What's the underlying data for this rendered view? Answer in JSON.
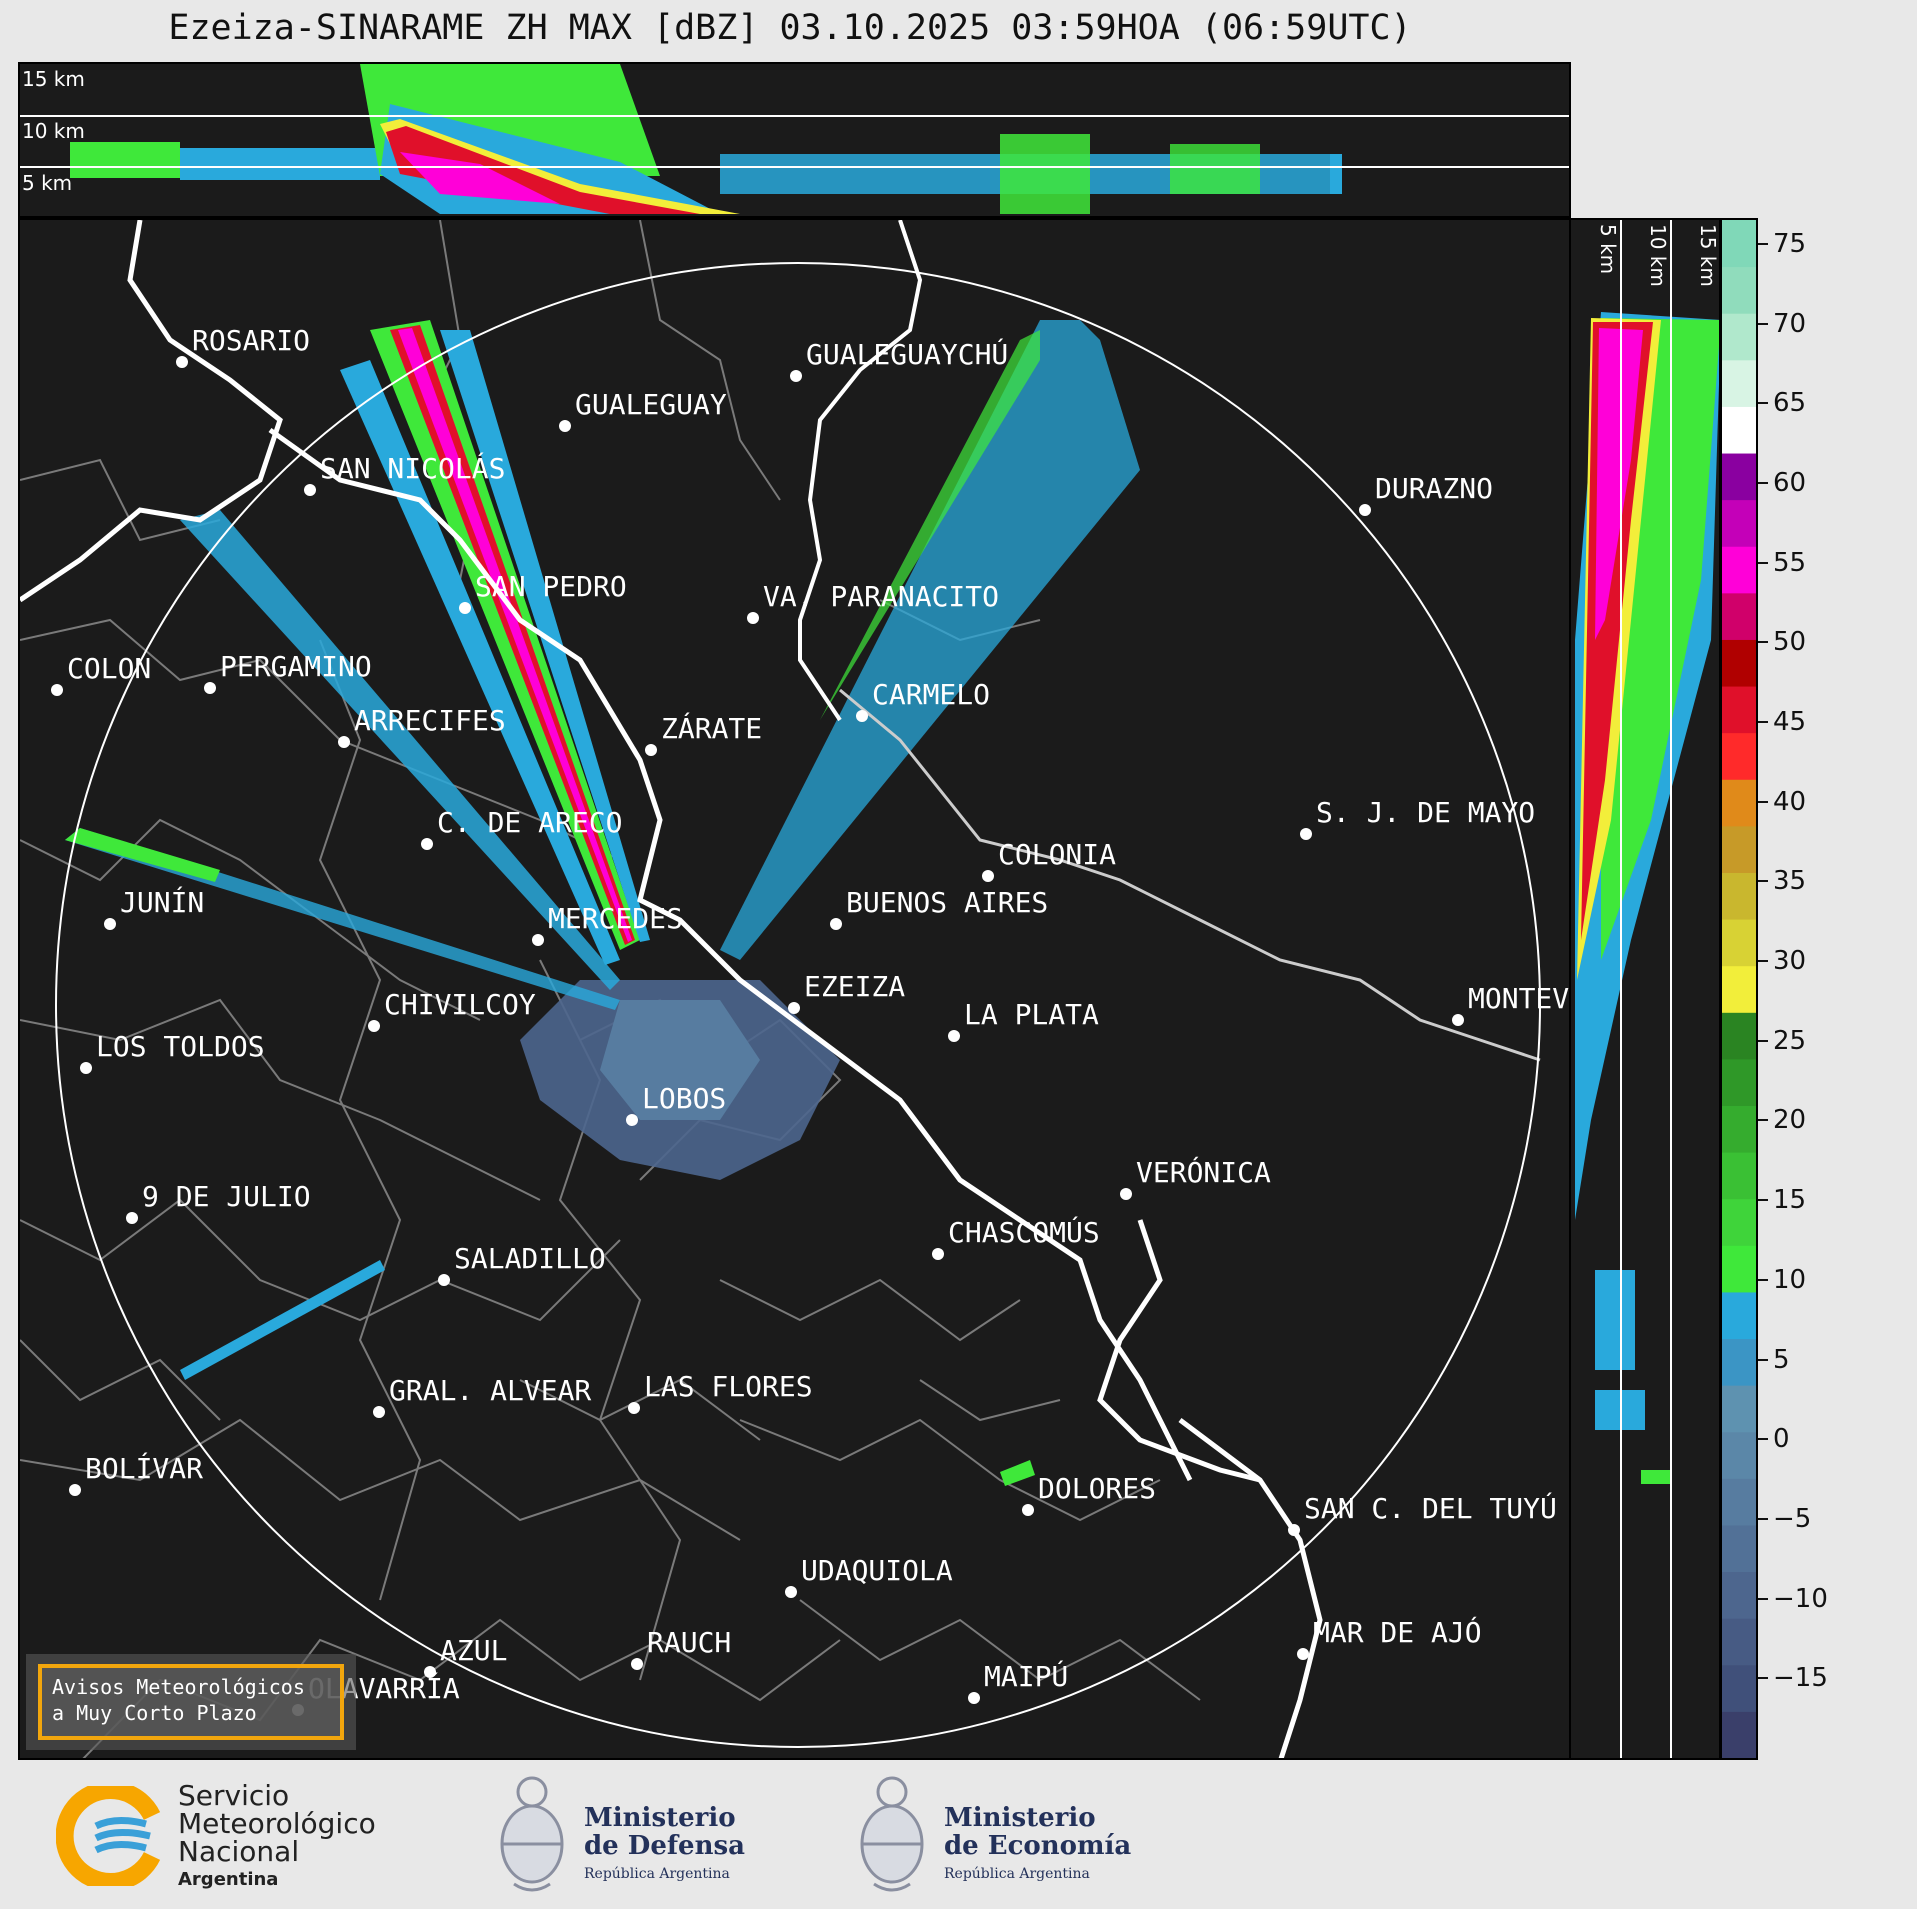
{
  "title": "Ezeiza-SINARAME ZH MAX [dBZ] 03.10.2025 03:59HOA (06:59UTC)",
  "top_panel": {
    "km_labels": [
      "15 km",
      "10 km",
      "5 km"
    ]
  },
  "side_panel": {
    "km_labels": [
      "5 km",
      "10 km",
      "15 km"
    ]
  },
  "colorbar": {
    "ticks": [
      "75",
      "70",
      "65",
      "60",
      "55",
      "50",
      "45",
      "40",
      "35",
      "30",
      "25",
      "20",
      "15",
      "10",
      "5",
      "0",
      "−5",
      "−10",
      "−15"
    ],
    "range": [
      -20,
      76.5
    ],
    "colors": [
      "#3a3f6a",
      "#40507a",
      "#475b84",
      "#4d668e",
      "#527197",
      "#577ca0",
      "#5b87a8",
      "#5e92b0",
      "#3b95c5",
      "#29a9dc",
      "#3fe83a",
      "#3fd43a",
      "#3ac034",
      "#35ac2e",
      "#2f9828",
      "#2a8422",
      "#f2ee3a",
      "#d8d234",
      "#c9b72e",
      "#c79a28",
      "#e08a1a",
      "#ff2a2a",
      "#e0102a",
      "#b00000",
      "#d0006a",
      "#ff00d8",
      "#c400b8",
      "#8a00a0",
      "#ffffff",
      "#d8f4e4",
      "#b0e8cc",
      "#90dcbc",
      "#80d8b8"
    ]
  },
  "cities": [
    {
      "name": "ROSARIO"
    },
    {
      "name": "GUALEGUAYCHÚ"
    },
    {
      "name": "GUALEGUAY"
    },
    {
      "name": "SAN NICOLÁS"
    },
    {
      "name": "DURAZNO"
    },
    {
      "name": "SAN PEDRO"
    },
    {
      "name": "VA. PARANACITO"
    },
    {
      "name": "COLON"
    },
    {
      "name": "PERGAMINO"
    },
    {
      "name": "CARMELO"
    },
    {
      "name": "ARRECIFES"
    },
    {
      "name": "ZÁRATE"
    },
    {
      "name": "C. DE ARECO"
    },
    {
      "name": "S. J. DE MAYO"
    },
    {
      "name": "COLONIA"
    },
    {
      "name": "JUNÍN"
    },
    {
      "name": "BUENOS AIRES"
    },
    {
      "name": "MERCEDES"
    },
    {
      "name": "EZEIZA"
    },
    {
      "name": "MONTEV"
    },
    {
      "name": "CHIVILCOY"
    },
    {
      "name": "LA PLATA"
    },
    {
      "name": "LOS TOLDOS"
    },
    {
      "name": "LOBOS"
    },
    {
      "name": "VERÓNICA"
    },
    {
      "name": "9 DE JULIO"
    },
    {
      "name": "CHASCOMÚS"
    },
    {
      "name": "SALADILLO"
    },
    {
      "name": "GRAL. ALVEAR"
    },
    {
      "name": "LAS FLORES"
    },
    {
      "name": "BOLÍVAR"
    },
    {
      "name": "DOLORES"
    },
    {
      "name": "SAN C. DEL TUYÚ"
    },
    {
      "name": "UDAQUIOLA"
    },
    {
      "name": "MAR DE AJÓ"
    },
    {
      "name": "AZUL"
    },
    {
      "name": "RAUCH"
    },
    {
      "name": "MAIPÚ"
    },
    {
      "name": "OLAVARRÍA"
    }
  ],
  "warning_box": {
    "line1": "Avisos Meteorológicos",
    "line2": "a Muy Corto Plazo"
  },
  "logos": {
    "smn": {
      "line1": "Servicio",
      "line2": "Meteorológico",
      "line3": "Nacional",
      "line4": "Argentina"
    },
    "defensa": {
      "line1": "Ministerio",
      "line2": "de Defensa",
      "line3": "República Argentina"
    },
    "economia": {
      "line1": "Ministerio",
      "line2": "de Economía",
      "line3": "República Argentina"
    }
  }
}
